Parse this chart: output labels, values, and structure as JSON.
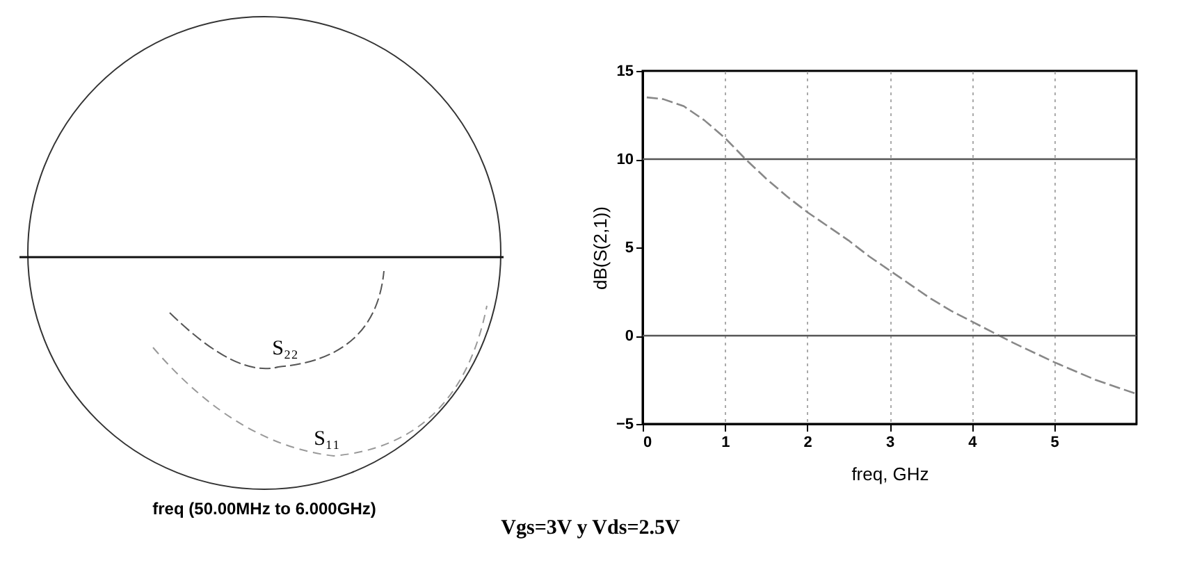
{
  "chart_data": [
    {
      "type": "other",
      "xlabel": "freq (50.00MHz to 6.000GHz)",
      "annotations": [
        "S₂₂",
        "S₁₁"
      ]
    },
    {
      "type": "line",
      "xlabel": "freq, GHz",
      "ylabel": "dB(S(2,1))",
      "annotations": [
        "Vgs=3V y Vds=2.5V"
      ],
      "x": [
        0.05,
        0.25,
        0.5,
        0.75,
        1,
        1.25,
        1.5,
        1.75,
        2,
        2.25,
        2.5,
        2.75,
        3,
        3.25,
        3.5,
        3.75,
        4,
        4.25,
        4.5,
        5,
        5.5,
        6
      ],
      "series": [
        {
          "color": "#888888",
          "values": [
            13.5,
            13.4,
            13.0,
            12.2,
            11.2,
            10,
            8.9,
            7.9,
            7.0,
            6.2,
            5.4,
            4.5,
            3.7,
            2.9,
            2.1,
            1.4,
            0.8,
            0.2,
            -0.4,
            -1.5,
            -2.5,
            -3.3
          ]
        }
      ],
      "xlim": [
        0,
        6
      ],
      "xticks": [
        0,
        1,
        2,
        3,
        4,
        5
      ],
      "ylim": [
        -5,
        15
      ],
      "yticks": [
        -5,
        0,
        5,
        10,
        15
      ],
      "grid": "x",
      "line_style": "dashed",
      "legend": false,
      "ref_lines": [
        {
          "axis": "y",
          "value": 10,
          "color": "#555555"
        },
        {
          "axis": "y",
          "value": 0,
          "color": "#555555"
        }
      ]
    }
  ]
}
